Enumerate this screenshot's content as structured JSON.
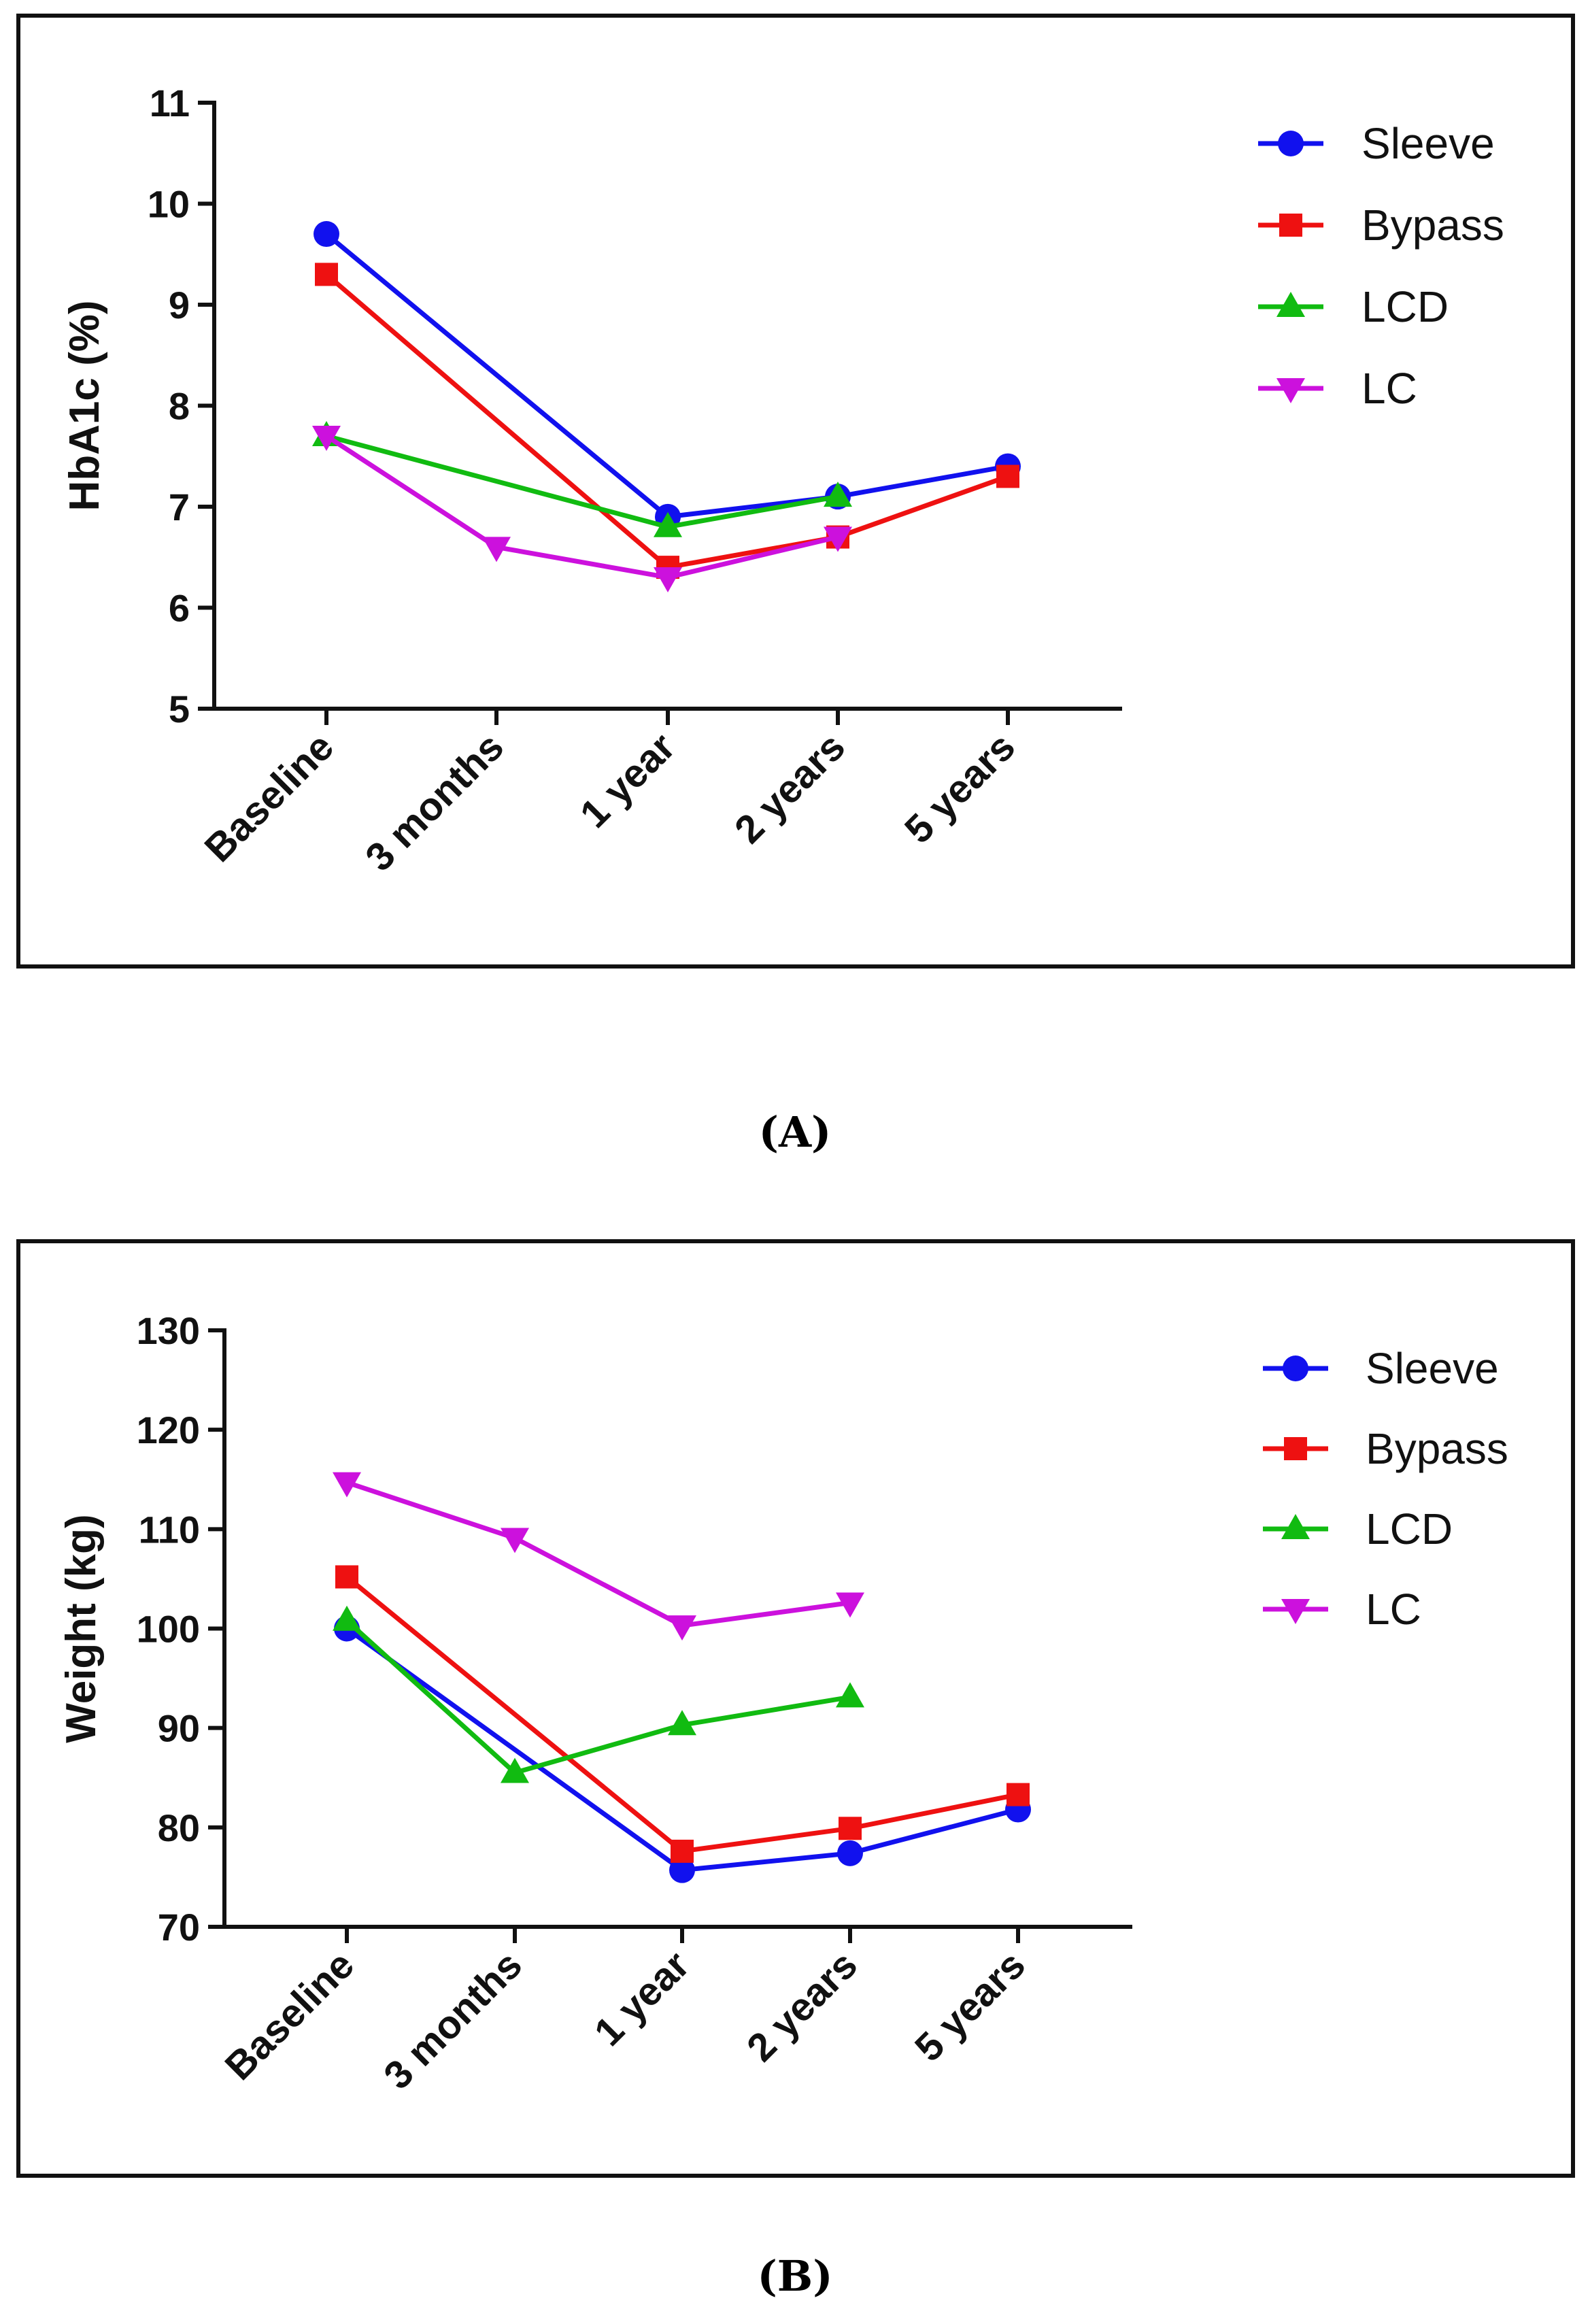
{
  "chart_data": [
    {
      "type": "line",
      "panel": "(A)",
      "ylabel": "HbA1c (%)",
      "xlabel": "",
      "ylim": [
        5,
        11
      ],
      "yticks": [
        5,
        6,
        7,
        8,
        9,
        10,
        11
      ],
      "categories": [
        "Baseline",
        "3 months",
        "1 year",
        "2 years",
        "5 years"
      ],
      "legend_position": "top-right",
      "series": [
        {
          "name": "Sleeve",
          "color": "#1111EE",
          "marker": "circle",
          "values": [
            9.7,
            null,
            6.9,
            7.1,
            7.4
          ]
        },
        {
          "name": "Bypass",
          "color": "#EE1111",
          "marker": "square",
          "values": [
            9.3,
            null,
            6.4,
            6.7,
            7.3
          ]
        },
        {
          "name": "LCD",
          "color": "#11BB11",
          "marker": "triangle-up",
          "values": [
            7.7,
            null,
            6.8,
            7.1,
            null
          ]
        },
        {
          "name": "LC",
          "color": "#CC11DD",
          "marker": "triangle-down",
          "values": [
            7.7,
            6.6,
            6.3,
            6.7,
            null
          ]
        }
      ]
    },
    {
      "type": "line",
      "panel": "(B)",
      "ylabel": "Weight (kg)",
      "xlabel": "",
      "ylim": [
        70,
        130
      ],
      "yticks": [
        70,
        80,
        90,
        100,
        110,
        120,
        130
      ],
      "categories": [
        "Baseline",
        "3 months",
        "1 year",
        "2 years",
        "5 years"
      ],
      "legend_position": "top-right",
      "series": [
        {
          "name": "Sleeve",
          "color": "#1111EE",
          "marker": "circle",
          "values": [
            100,
            null,
            75.7,
            77.4,
            81.8
          ]
        },
        {
          "name": "Bypass",
          "color": "#EE1111",
          "marker": "square",
          "values": [
            105.2,
            null,
            77.6,
            79.9,
            83.3
          ]
        },
        {
          "name": "LCD",
          "color": "#11BB11",
          "marker": "triangle-up",
          "values": [
            100.8,
            85.5,
            90.3,
            93.1,
            null
          ]
        },
        {
          "name": "LC",
          "color": "#CC11DD",
          "marker": "triangle-down",
          "values": [
            114.7,
            109.1,
            100.3,
            102.6,
            null
          ]
        }
      ]
    }
  ],
  "captions": {
    "a": "(A)",
    "b": "(B)"
  }
}
